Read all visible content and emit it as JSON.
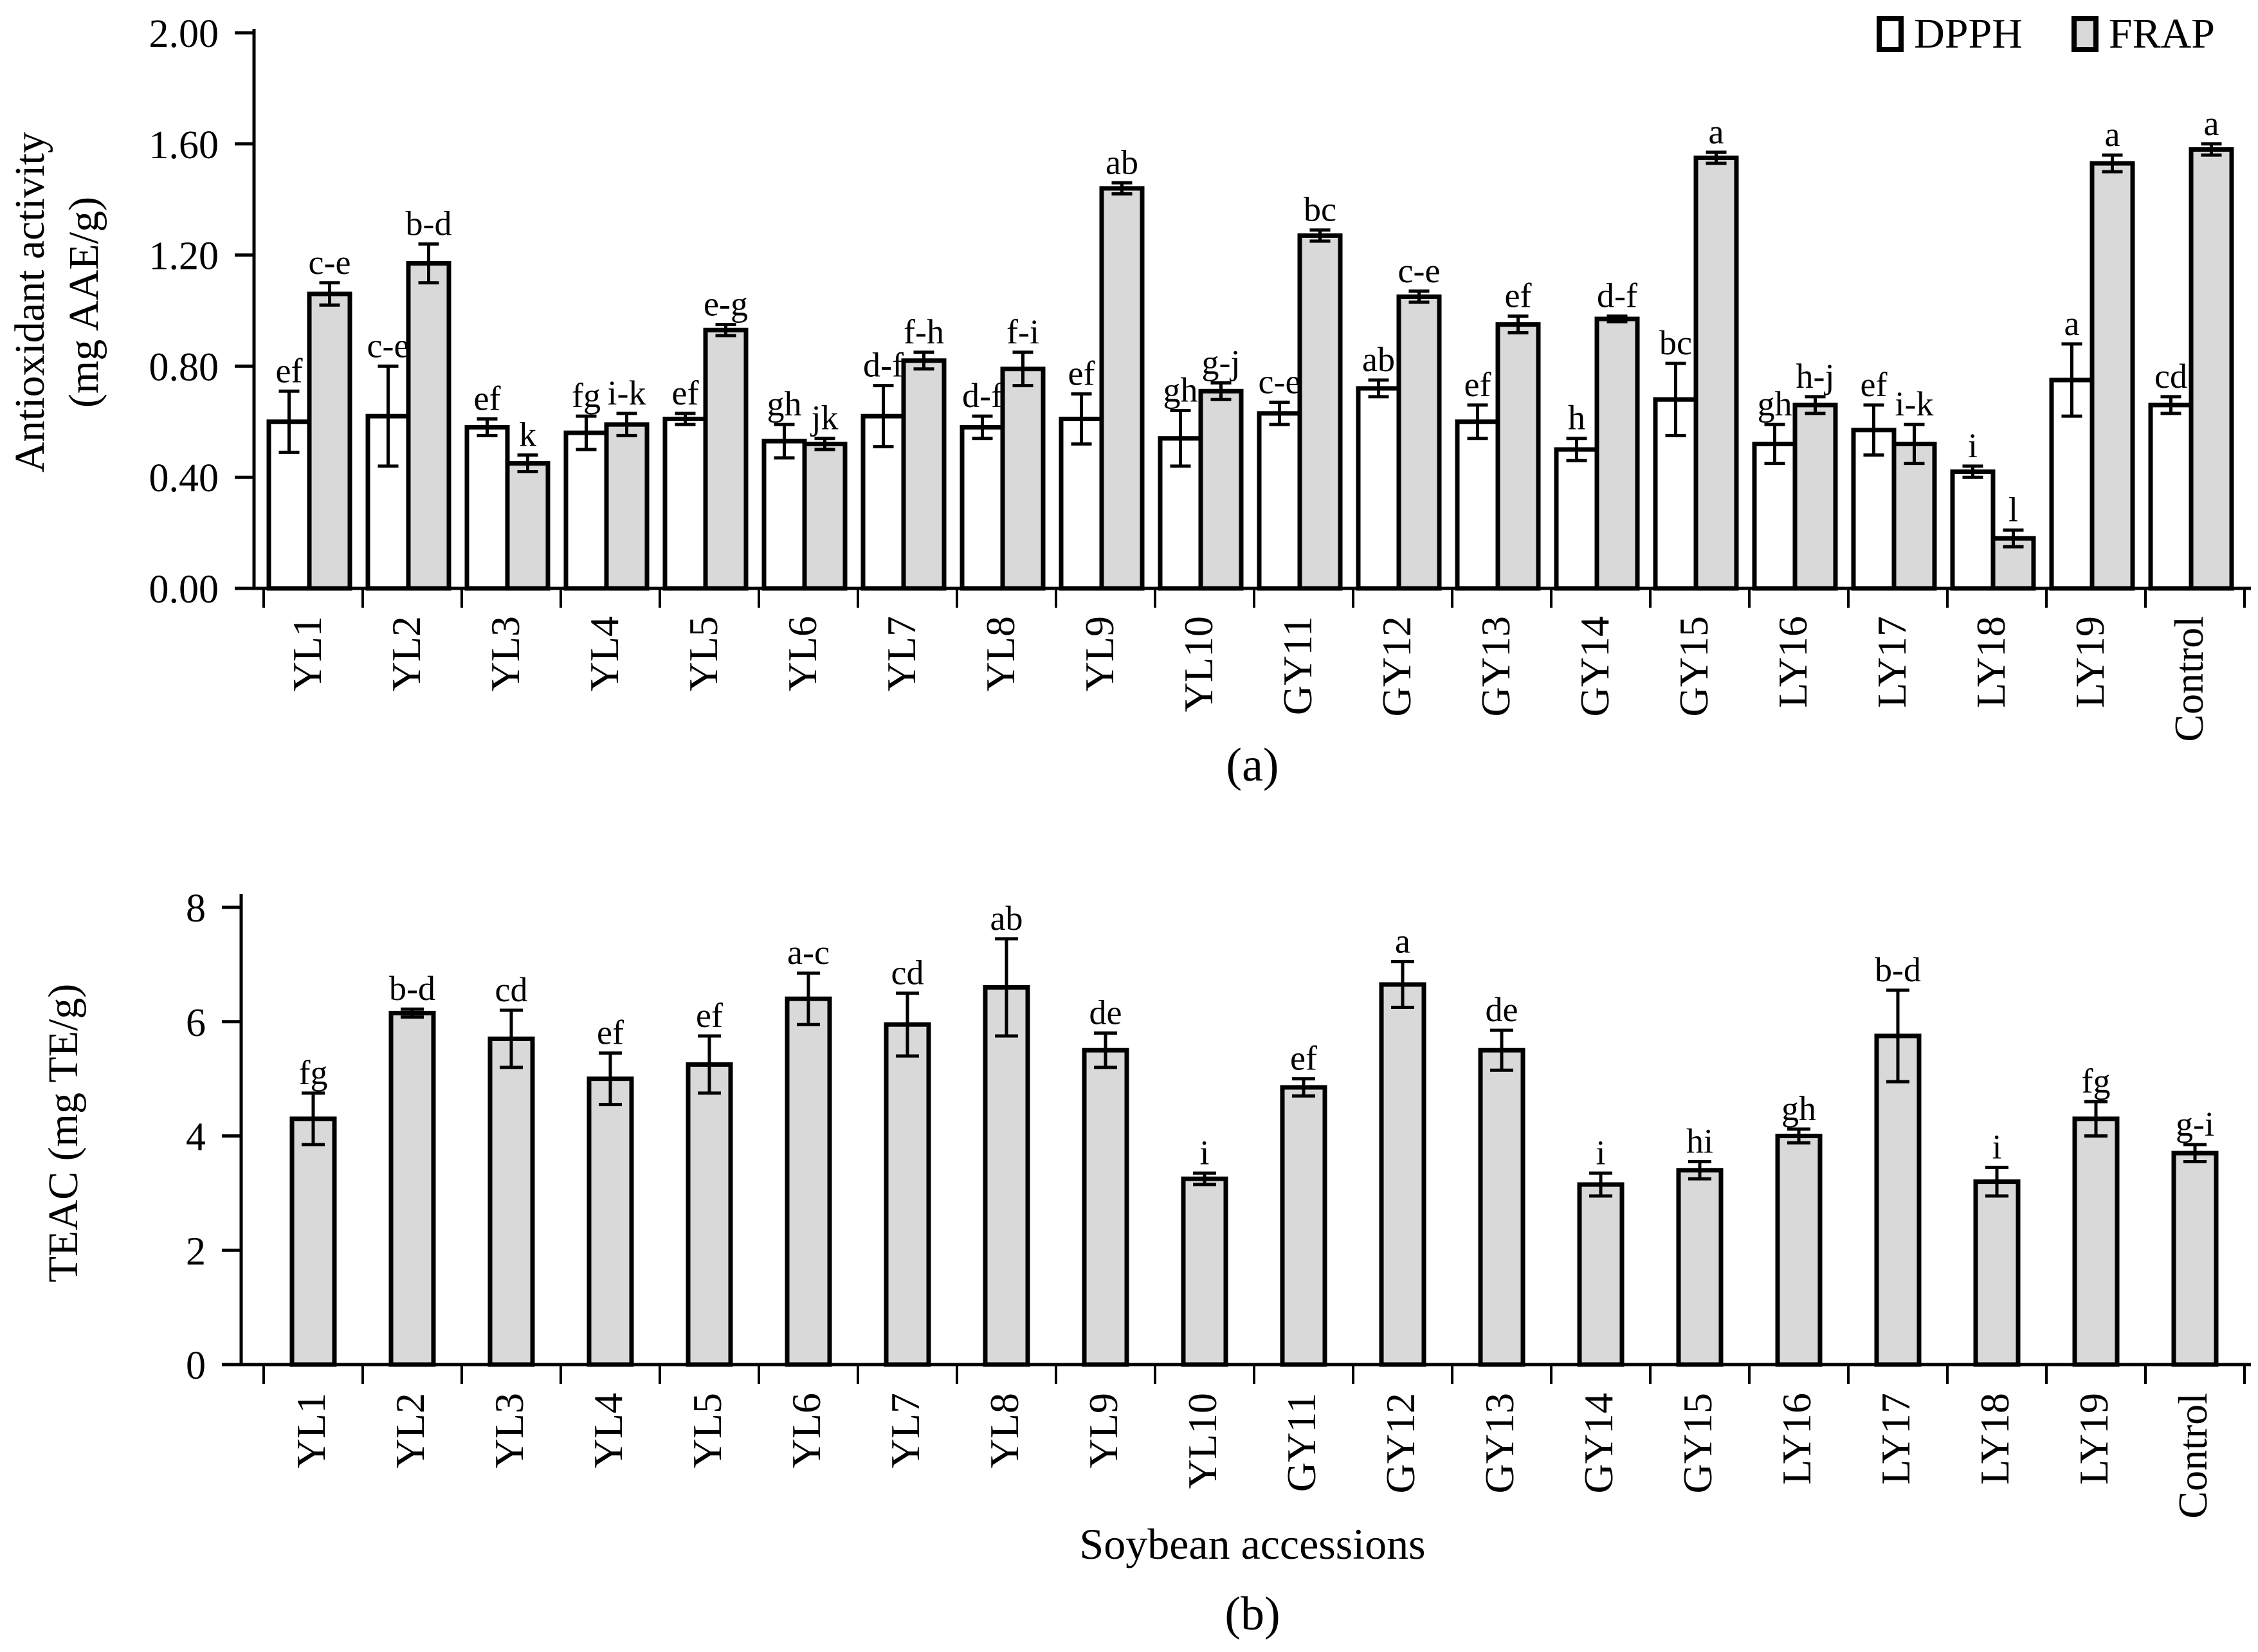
{
  "figure": {
    "background": "#ffffff",
    "text_color": "#000000",
    "bar_outline_color": "#000000",
    "gray_fill": "#d9d9d9",
    "white_fill": "#ffffff",
    "panel_a_caption": "(a)",
    "panel_b_caption": "(b)",
    "legend": {
      "position": "top-right",
      "items": [
        {
          "label": "DPPH",
          "fill": "#ffffff"
        },
        {
          "label": "FRAP",
          "fill": "#d9d9d9"
        }
      ]
    }
  },
  "chart_data": [
    {
      "type": "bar",
      "panel": "a",
      "title": "",
      "ylabel": "Antioxidant activity (mg AAE/g)",
      "ylabel_lines": [
        "Antioxidant activity",
        "(mg AAE/g)"
      ],
      "xlabel": "",
      "ylim": [
        0,
        2
      ],
      "yticks": [
        0,
        0.4,
        0.8,
        1.2,
        1.6,
        2
      ],
      "ytick_labels": [
        "0.00",
        "0.40",
        "0.80",
        "1.20",
        "1.60",
        "2.00"
      ],
      "grid": false,
      "legend_position": "top-right",
      "categories": [
        "YL1",
        "YL2",
        "YL3",
        "YL4",
        "YL5",
        "YL6",
        "YL7",
        "YL8",
        "YL9",
        "YL10",
        "GY11",
        "GY12",
        "GY13",
        "GY14",
        "GY15",
        "LY16",
        "LY17",
        "LY18",
        "LY19",
        "Control"
      ],
      "series": [
        {
          "name": "DPPH",
          "fill": "#ffffff",
          "values": [
            0.6,
            0.62,
            0.58,
            0.56,
            0.61,
            0.53,
            0.62,
            0.58,
            0.61,
            0.54,
            0.63,
            0.72,
            0.6,
            0.5,
            0.68,
            0.52,
            0.57,
            0.42,
            0.75,
            0.66
          ],
          "errors": [
            0.11,
            0.18,
            0.03,
            0.06,
            0.02,
            0.06,
            0.11,
            0.04,
            0.09,
            0.1,
            0.04,
            0.03,
            0.06,
            0.04,
            0.13,
            0.07,
            0.09,
            0.02,
            0.13,
            0.03
          ],
          "sig_letters": [
            "ef",
            "c-e",
            "ef",
            "fg",
            "ef",
            "gh",
            "d-f",
            "d-f",
            "ef",
            "gh",
            "c-e",
            "ab",
            "ef",
            "h",
            "bc",
            "gh",
            "ef",
            "i",
            "a",
            "cd"
          ]
        },
        {
          "name": "FRAP",
          "fill": "#d9d9d9",
          "values": [
            1.06,
            1.17,
            0.45,
            0.59,
            0.93,
            0.52,
            0.82,
            0.79,
            1.44,
            0.71,
            1.27,
            1.05,
            0.95,
            0.97,
            1.55,
            0.66,
            0.52,
            0.18,
            1.53,
            1.58
          ],
          "errors": [
            0.04,
            0.07,
            0.03,
            0.04,
            0.02,
            0.02,
            0.03,
            0.06,
            0.02,
            0.03,
            0.02,
            0.02,
            0.03,
            0.01,
            0.02,
            0.03,
            0.07,
            0.03,
            0.03,
            0.02
          ],
          "sig_letters": [
            "c-e",
            "b-d",
            "k",
            "i-k",
            "e-g",
            "jk",
            "f-h",
            "f-i",
            "ab",
            "g-j",
            "bc",
            "c-e",
            "ef",
            "d-f",
            "a",
            "h-j",
            "i-k",
            "l",
            "a",
            "a"
          ]
        }
      ]
    },
    {
      "type": "bar",
      "panel": "b",
      "title": "",
      "ylabel": "TEAC (mg TE/g)",
      "ylabel_lines": [
        "TEAC (mg TE/g)"
      ],
      "xlabel": "Soybean accessions",
      "ylim": [
        0,
        8
      ],
      "yticks": [
        0,
        2,
        4,
        6,
        8
      ],
      "ytick_labels": [
        "0",
        "2",
        "4",
        "6",
        "8"
      ],
      "grid": false,
      "categories": [
        "YL1",
        "YL2",
        "YL3",
        "YL4",
        "YL5",
        "YL6",
        "YL7",
        "YL8",
        "YL9",
        "YL10",
        "GY11",
        "GY12",
        "GY13",
        "GY14",
        "GY15",
        "LY16",
        "LY17",
        "LY18",
        "LY19",
        "Control"
      ],
      "series": [
        {
          "name": "TEAC",
          "fill": "#d9d9d9",
          "values": [
            4.3,
            6.15,
            5.7,
            5.0,
            5.25,
            6.4,
            5.95,
            6.6,
            5.5,
            3.25,
            4.85,
            6.65,
            5.5,
            3.15,
            3.4,
            4.0,
            5.75,
            3.2,
            4.3,
            3.7
          ],
          "errors": [
            0.45,
            0.07,
            0.5,
            0.45,
            0.5,
            0.45,
            0.55,
            0.85,
            0.3,
            0.1,
            0.15,
            0.4,
            0.35,
            0.2,
            0.15,
            0.12,
            0.8,
            0.25,
            0.3,
            0.15
          ],
          "sig_letters": [
            "fg",
            "b-d",
            "cd",
            "ef",
            "ef",
            "a-c",
            "cd",
            "ab",
            "de",
            "i",
            "ef",
            "a",
            "de",
            "i",
            "hi",
            "gh",
            "b-d",
            "i",
            "fg",
            "g-i"
          ]
        }
      ]
    }
  ]
}
